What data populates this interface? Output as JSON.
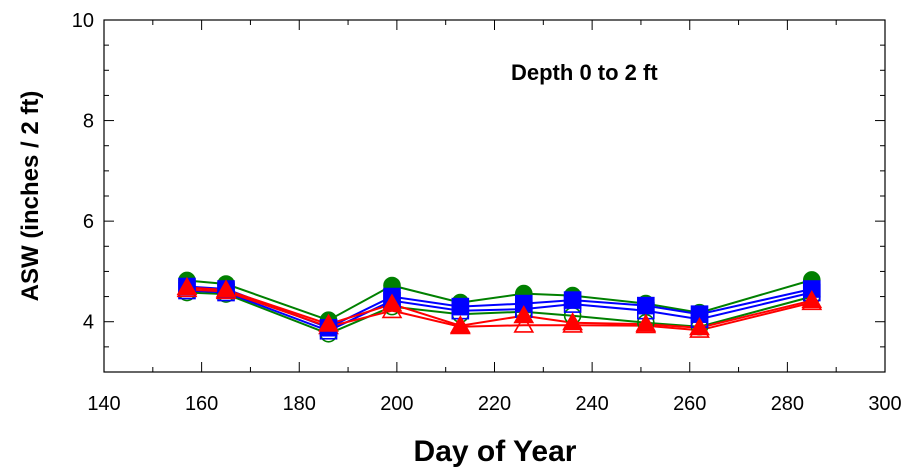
{
  "chart_data": {
    "type": "line",
    "title": "",
    "xlabel": "Day of Year",
    "ylabel": "ASW (inches / 2 ft)",
    "annotation": "Depth 0 to 2 ft",
    "xlim": [
      140,
      300
    ],
    "ylim": [
      3,
      10
    ],
    "xticks": [
      "140",
      "160",
      "180",
      "200",
      "220",
      "240",
      "260",
      "280",
      "300"
    ],
    "yticks": [
      "4",
      "6",
      "8",
      "10"
    ],
    "grid": false,
    "x": [
      157,
      165,
      186,
      199,
      213,
      226,
      236,
      251,
      262,
      285
    ],
    "series": [
      {
        "color": "#008000",
        "marker": "circle",
        "filled": true,
        "values": [
          4.82,
          4.75,
          4.03,
          4.72,
          4.38,
          4.56,
          4.52,
          4.36,
          4.18,
          4.83
        ]
      },
      {
        "color": "#008000",
        "marker": "circle",
        "filled": false,
        "values": [
          4.58,
          4.55,
          3.76,
          4.3,
          4.15,
          4.2,
          4.12,
          3.98,
          3.9,
          4.5
        ]
      },
      {
        "color": "#0000ff",
        "marker": "square",
        "filled": true,
        "values": [
          4.7,
          4.65,
          3.88,
          4.5,
          4.3,
          4.36,
          4.43,
          4.32,
          4.15,
          4.65
        ]
      },
      {
        "color": "#0000ff",
        "marker": "square",
        "filled": false,
        "values": [
          4.62,
          4.58,
          3.82,
          4.42,
          4.22,
          4.25,
          4.35,
          4.22,
          4.05,
          4.58
        ]
      },
      {
        "color": "#ff0000",
        "marker": "triangle",
        "filled": true,
        "values": [
          4.68,
          4.63,
          3.95,
          4.35,
          3.92,
          4.12,
          3.98,
          3.95,
          3.88,
          4.42
        ]
      },
      {
        "color": "#ff0000",
        "marker": "triangle",
        "filled": false,
        "values": [
          4.64,
          4.6,
          3.9,
          4.22,
          3.9,
          3.93,
          3.93,
          3.92,
          3.83,
          4.38
        ]
      }
    ]
  }
}
